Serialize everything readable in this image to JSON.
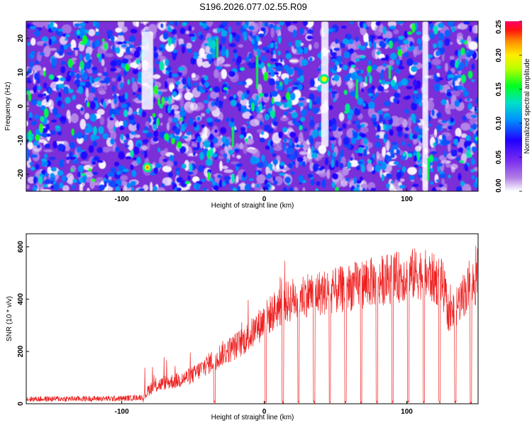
{
  "title": "S196.2026.077.02.55.R09",
  "chart_data": [
    {
      "type": "heatmap",
      "xlabel": "Height of straight line (km)",
      "ylabel": "Frequency (Hz)",
      "xlim": [
        -167,
        150
      ],
      "ylim": [
        -25,
        25
      ],
      "x_ticks": [
        -100,
        0,
        100
      ],
      "y_ticks": [
        -20,
        -10,
        0,
        10,
        20
      ],
      "colorbar": {
        "label": "Normalized spectral amplitude",
        "range": [
          0,
          0.25
        ],
        "ticks": [
          0.0,
          0.05,
          0.1,
          0.15,
          0.2,
          0.25
        ],
        "tick_labels": [
          "0.00",
          "0.05",
          "0.10",
          "0.15",
          "0.20",
          "0.25"
        ],
        "colors": [
          "#ffffff",
          "#8a2be2",
          "#4b00ff",
          "#0000ff",
          "#00aaff",
          "#00e5c8",
          "#00ff00",
          "#aaff00",
          "#ffff00",
          "#ff9900",
          "#ff0000",
          "#ff0066"
        ]
      },
      "hot_spots": [
        {
          "x": -82,
          "y": -18,
          "value": 0.22
        },
        {
          "x": 42,
          "y": 8,
          "value": 0.2
        }
      ],
      "white_bands": [
        {
          "x_from": -86,
          "x_to": -78,
          "y_from": -1,
          "y_to": 22
        },
        {
          "x_from": 40,
          "x_to": 45,
          "y_from": -12,
          "y_to": 25
        },
        {
          "x_from": 111,
          "x_to": 115,
          "y_from": -25,
          "y_to": 25
        }
      ]
    },
    {
      "type": "line",
      "xlabel": "Height of straight line (km)",
      "ylabel": "SNR (10 * v/v)",
      "xlim": [
        -167,
        150
      ],
      "ylim": [
        0,
        650
      ],
      "x_ticks": [
        -100,
        0,
        100
      ],
      "y_ticks": [
        0,
        200,
        400,
        600
      ],
      "color": "#ee2222",
      "series": [
        {
          "values_profile": [
            [
              -167,
              18
            ],
            [
              -100,
              20
            ],
            [
              -85,
              25
            ],
            [
              -80,
              60
            ],
            [
              -70,
              80
            ],
            [
              -60,
              90
            ],
            [
              -50,
              110
            ],
            [
              -40,
              150
            ],
            [
              -30,
              190
            ],
            [
              -20,
              220
            ],
            [
              -10,
              260
            ],
            [
              0,
              320
            ],
            [
              10,
              370
            ],
            [
              20,
              400
            ],
            [
              30,
              420
            ],
            [
              50,
              430
            ],
            [
              70,
              460
            ],
            [
              90,
              480
            ],
            [
              110,
              500
            ],
            [
              125,
              460
            ],
            [
              130,
              330
            ],
            [
              140,
              420
            ],
            [
              150,
              480
            ]
          ]
        }
      ],
      "dips_x": [
        -35,
        1,
        13,
        24,
        35,
        46,
        57,
        68,
        79,
        90,
        101,
        112,
        123,
        134,
        145
      ]
    }
  ]
}
